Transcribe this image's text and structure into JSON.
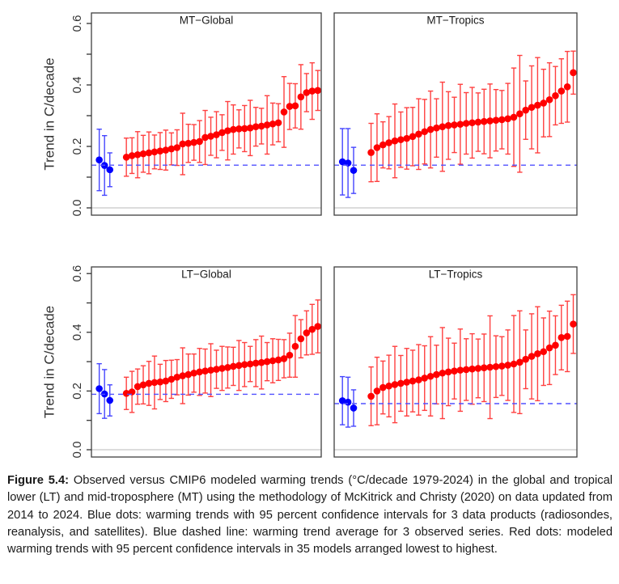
{
  "page": {
    "background": "#ffffff"
  },
  "colors": {
    "model_dot": "#ff0000",
    "model_bar": "#ff4040",
    "observed_dot": "#0000ff",
    "observed_bar": "#4545ff",
    "mean_line": "#5050ff",
    "zero_line": "#c8c8c8",
    "panel_border": "#404040",
    "tick": "#333333",
    "text": "#1a1a1a"
  },
  "figure": {
    "caption_label": "Figure 5.4:",
    "caption_text": "Observed versus CMIP6 modeled warming trends (°C/decade 1979-2024) in the global and tropical lower (LT) and mid-troposphere (MT) using the methodology of McKitrick and Christy (2020) on data updated from 2014 to 2024. Blue dots: warming trends with 95 percent confidence intervals for 3 data products (radiosondes, reanalysis, and satellites). Blue dashed line: warming trend average for 3 observed series. Red dots: modeled warming trends with 95 percent confidence intervals in 35 models arranged lowest to highest."
  },
  "chart_data": [
    {
      "type": "scatter",
      "title": "MT−Global",
      "ylabel": "Trend in C/decade",
      "ylim": [
        -0.03,
        0.63
      ],
      "yticks": [
        0.0,
        0.1,
        0.2,
        0.3,
        0.4,
        0.5,
        0.6
      ],
      "ytick_labels": [
        "0.0",
        "0.2",
        "0.4",
        "0.6"
      ],
      "grid": false,
      "zero_line": 0.0,
      "observed_mean": 0.139,
      "observed": {
        "label": "observed trends (radiosondes, reanalysis, satellites)",
        "values": [
          0.156,
          0.138,
          0.124
        ],
        "ci_half": [
          0.1,
          0.097,
          0.055
        ]
      },
      "models": {
        "label": "CMIP6 model trends (lowest to highest)",
        "values": [
          0.165,
          0.17,
          0.173,
          0.176,
          0.179,
          0.182,
          0.185,
          0.188,
          0.192,
          0.196,
          0.208,
          0.21,
          0.213,
          0.216,
          0.229,
          0.233,
          0.238,
          0.245,
          0.251,
          0.255,
          0.257,
          0.258,
          0.26,
          0.264,
          0.266,
          0.27,
          0.273,
          0.277,
          0.312,
          0.33,
          0.332,
          0.361,
          0.375,
          0.38,
          0.382
        ],
        "ci_half": [
          0.062,
          0.058,
          0.075,
          0.06,
          0.068,
          0.055,
          0.06,
          0.065,
          0.052,
          0.058,
          0.1,
          0.062,
          0.058,
          0.068,
          0.088,
          0.062,
          0.075,
          0.058,
          0.095,
          0.08,
          0.062,
          0.075,
          0.09,
          0.063,
          0.058,
          0.095,
          0.068,
          0.062,
          0.115,
          0.075,
          0.072,
          0.105,
          0.062,
          0.092,
          0.065
        ]
      }
    },
    {
      "type": "scatter",
      "title": "MT−Tropics",
      "ylabel": "Trend in C/decade",
      "ylim": [
        -0.03,
        0.63
      ],
      "yticks": [
        0.0,
        0.1,
        0.2,
        0.3,
        0.4,
        0.5,
        0.6
      ],
      "ytick_labels": [
        "0.0",
        "0.2",
        "0.4",
        "0.6"
      ],
      "grid": false,
      "zero_line": 0.0,
      "observed_mean": 0.139,
      "observed": {
        "label": "observed trends (radiosondes, reanalysis, satellites)",
        "values": [
          0.15,
          0.146,
          0.122
        ],
        "ci_half": [
          0.108,
          0.112,
          0.075
        ]
      },
      "models": {
        "label": "CMIP6 model trends (lowest to highest)",
        "values": [
          0.18,
          0.196,
          0.205,
          0.212,
          0.218,
          0.222,
          0.226,
          0.232,
          0.24,
          0.248,
          0.255,
          0.26,
          0.264,
          0.268,
          0.27,
          0.272,
          0.275,
          0.277,
          0.279,
          0.281,
          0.283,
          0.285,
          0.287,
          0.29,
          0.295,
          0.306,
          0.318,
          0.327,
          0.334,
          0.341,
          0.352,
          0.365,
          0.38,
          0.394,
          0.44
        ],
        "ci_half": [
          0.095,
          0.11,
          0.075,
          0.085,
          0.12,
          0.09,
          0.1,
          0.095,
          0.115,
          0.105,
          0.125,
          0.095,
          0.145,
          0.11,
          0.09,
          0.13,
          0.1,
          0.115,
          0.095,
          0.105,
          0.12,
          0.1,
          0.095,
          0.115,
          0.16,
          0.19,
          0.095,
          0.135,
          0.155,
          0.11,
          0.12,
          0.095,
          0.105,
          0.115,
          0.07
        ]
      }
    },
    {
      "type": "scatter",
      "title": "LT−Global",
      "ylabel": "Trend in C/decade",
      "ylim": [
        -0.03,
        0.63
      ],
      "yticks": [
        0.0,
        0.1,
        0.2,
        0.3,
        0.4,
        0.5,
        0.6
      ],
      "ytick_labels": [
        "0.0",
        "0.2",
        "0.4",
        "0.6"
      ],
      "grid": false,
      "zero_line": 0.0,
      "observed_mean": 0.189,
      "observed": {
        "label": "observed trends (radiosondes, reanalysis, satellites)",
        "values": [
          0.208,
          0.19,
          0.168
        ],
        "ci_half": [
          0.085,
          0.083,
          0.053
        ]
      },
      "models": {
        "label": "CMIP6 model trends (lowest to highest)",
        "values": [
          0.192,
          0.197,
          0.215,
          0.221,
          0.226,
          0.229,
          0.231,
          0.234,
          0.24,
          0.247,
          0.252,
          0.256,
          0.261,
          0.265,
          0.268,
          0.271,
          0.274,
          0.277,
          0.28,
          0.284,
          0.287,
          0.29,
          0.292,
          0.295,
          0.297,
          0.3,
          0.303,
          0.306,
          0.31,
          0.322,
          0.352,
          0.378,
          0.398,
          0.41,
          0.42
        ],
        "ci_half": [
          0.055,
          0.07,
          0.06,
          0.065,
          0.075,
          0.09,
          0.06,
          0.07,
          0.065,
          0.06,
          0.095,
          0.07,
          0.065,
          0.08,
          0.075,
          0.09,
          0.065,
          0.075,
          0.07,
          0.065,
          0.085,
          0.075,
          0.06,
          0.08,
          0.09,
          0.065,
          0.075,
          0.07,
          0.065,
          0.075,
          0.105,
          0.065,
          0.075,
          0.085,
          0.09
        ]
      }
    },
    {
      "type": "scatter",
      "title": "LT−Tropics",
      "ylabel": "Trend in C/decade",
      "ylim": [
        -0.03,
        0.63
      ],
      "yticks": [
        0.0,
        0.1,
        0.2,
        0.3,
        0.4,
        0.5,
        0.6
      ],
      "ytick_labels": [
        "0.0",
        "0.2",
        "0.4",
        "0.6"
      ],
      "grid": false,
      "zero_line": 0.0,
      "observed_mean": 0.157,
      "observed": {
        "label": "observed trends (radiosondes, reanalysis, satellites)",
        "values": [
          0.167,
          0.162,
          0.142
        ],
        "ci_half": [
          0.082,
          0.085,
          0.062
        ]
      },
      "models": {
        "label": "CMIP6 model trends (lowest to highest)",
        "values": [
          0.182,
          0.2,
          0.212,
          0.217,
          0.222,
          0.226,
          0.23,
          0.234,
          0.238,
          0.244,
          0.25,
          0.256,
          0.261,
          0.265,
          0.268,
          0.271,
          0.273,
          0.275,
          0.277,
          0.279,
          0.281,
          0.283,
          0.285,
          0.288,
          0.292,
          0.298,
          0.308,
          0.318,
          0.327,
          0.334,
          0.347,
          0.356,
          0.382,
          0.386,
          0.428
        ],
        "ci_half": [
          0.1,
          0.115,
          0.09,
          0.105,
          0.13,
          0.095,
          0.115,
          0.105,
          0.12,
          0.11,
          0.135,
          0.1,
          0.155,
          0.115,
          0.095,
          0.14,
          0.105,
          0.12,
          0.1,
          0.115,
          0.175,
          0.105,
          0.1,
          0.12,
          0.165,
          0.175,
          0.1,
          0.145,
          0.16,
          0.115,
          0.125,
          0.1,
          0.11,
          0.12,
          0.1
        ]
      }
    }
  ]
}
